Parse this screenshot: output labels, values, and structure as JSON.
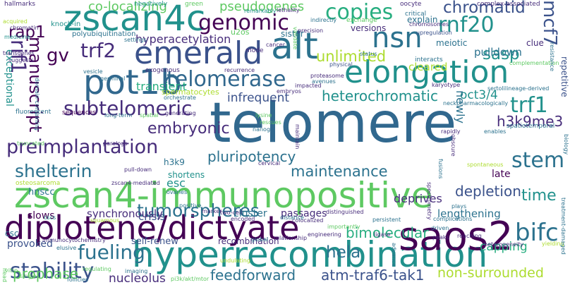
{
  "palette": [
    "#440154",
    "#472d7b",
    "#3b528b",
    "#2c728e",
    "#21918c",
    "#28ae80",
    "#5ec962",
    "#addc30",
    "#fde725"
  ],
  "words": [
    {
      "text": "telomere",
      "color": "#31688e",
      "vertical": false
    },
    {
      "text": "zscan4-immunopositive",
      "color": "#5ec962",
      "vertical": false
    },
    {
      "text": "hyperrecombination",
      "color": "#21918c",
      "vertical": false
    },
    {
      "text": "diplotene/dictyate",
      "color": "#440154",
      "vertical": false
    },
    {
      "text": "zscan4c",
      "color": "#21918c",
      "vertical": false
    },
    {
      "text": "emerald",
      "color": "#3b528b",
      "vertical": false
    },
    {
      "text": "elongation",
      "color": "#21918c",
      "vertical": false
    },
    {
      "text": "alt",
      "color": "#2c728e",
      "vertical": false
    },
    {
      "text": "pot1b",
      "color": "#31688e",
      "vertical": false
    },
    {
      "text": "saos2",
      "color": "#440154",
      "vertical": false
    },
    {
      "text": "nsn",
      "color": "#2c728e",
      "vertical": false
    },
    {
      "text": "telomerase",
      "color": "#31688e",
      "vertical": false
    },
    {
      "text": "genomic",
      "color": "#440154",
      "vertical": false
    },
    {
      "text": "copies",
      "color": "#28ae80",
      "vertical": false
    },
    {
      "text": "preimplantation",
      "color": "#472d7b",
      "vertical": false
    },
    {
      "text": "shelterin",
      "color": "#2c728e",
      "vertical": false
    },
    {
      "text": "subtelomeric",
      "color": "#472d7b",
      "vertical": false
    },
    {
      "text": "rnf20",
      "color": "#21918c",
      "vertical": false
    },
    {
      "text": "tumorspheres",
      "color": "#2c728e",
      "vertical": false
    },
    {
      "text": "stability",
      "color": "#3b528b",
      "vertical": false
    },
    {
      "text": "maintenance",
      "color": "#2c728e",
      "vertical": false
    },
    {
      "text": "bimolecular",
      "color": "#28ae80",
      "vertical": false
    },
    {
      "text": "fueling",
      "color": "#2c728e",
      "vertical": false
    },
    {
      "text": "bifc",
      "color": "#2c728e",
      "vertical": false
    },
    {
      "text": "trf1",
      "color": "#21918c",
      "vertical": false
    },
    {
      "text": "stem",
      "color": "#2c728e",
      "vertical": false
    },
    {
      "text": "chromatid",
      "color": "#3b528b",
      "vertical": false
    },
    {
      "text": "rap1",
      "color": "#440154",
      "vertical": false
    },
    {
      "text": "trf2",
      "color": "#472d7b",
      "vertical": false
    },
    {
      "text": "gv",
      "color": "#440154",
      "vertical": false
    },
    {
      "text": "embryonic",
      "color": "#472d7b",
      "vertical": false
    },
    {
      "text": "heterochromatic",
      "color": "#21918c",
      "vertical": false
    },
    {
      "text": "h3k9me3",
      "color": "#472d7b",
      "vertical": false
    },
    {
      "text": "pluripotency",
      "color": "#2c728e",
      "vertical": false
    },
    {
      "text": "hela",
      "color": "#2c728e",
      "vertical": false
    },
    {
      "text": "unlimited",
      "color": "#addc30",
      "vertical": false
    },
    {
      "text": "sasp",
      "color": "#21918c",
      "vertical": false
    },
    {
      "text": "feedforward",
      "color": "#2c728e",
      "vertical": false
    },
    {
      "text": "atm-traf6-tak1",
      "color": "#3b528b",
      "vertical": false
    },
    {
      "text": "non-surrounded",
      "color": "#addc30",
      "vertical": false
    },
    {
      "text": "prophase",
      "color": "#5ec962",
      "vertical": false
    },
    {
      "text": "nucleolus",
      "color": "#472d7b",
      "vertical": false
    },
    {
      "text": "lengthening",
      "color": "#2c728e",
      "vertical": false
    },
    {
      "text": "time",
      "color": "#21918c",
      "vertical": false
    },
    {
      "text": "depletion",
      "color": "#3b528b",
      "vertical": false
    },
    {
      "text": "hyperacetylation",
      "color": "#472d7b",
      "vertical": false
    },
    {
      "text": "pseudogenes",
      "color": "#5ec962",
      "vertical": false
    },
    {
      "text": "co-localizing",
      "color": "#5ec962",
      "vertical": false
    },
    {
      "text": "oct3/4",
      "color": "#21918c",
      "vertical": false
    },
    {
      "text": "pulldown",
      "color": "#2c728e",
      "vertical": false
    },
    {
      "text": "crisis",
      "color": "#3b528b",
      "vertical": false
    },
    {
      "text": "esc",
      "color": "#21918c",
      "vertical": false
    },
    {
      "text": "passages",
      "color": "#472d7b",
      "vertical": false
    },
    {
      "text": "deprives",
      "color": "#472d7b",
      "vertical": false
    },
    {
      "text": "capping",
      "color": "#28ae80",
      "vertical": false
    },
    {
      "text": "provoked",
      "color": "#3b528b",
      "vertical": false
    },
    {
      "text": "self-renew",
      "color": "#3b528b",
      "vertical": false
    },
    {
      "text": "recombination",
      "color": "#472d7b",
      "vertical": false
    },
    {
      "text": "synchronously",
      "color": "#472d7b",
      "vertical": false
    },
    {
      "text": "cluster",
      "color": "#2c728e",
      "vertical": false
    },
    {
      "text": "slows",
      "color": "#440154",
      "vertical": false
    },
    {
      "text": "shortens",
      "color": "#21918c",
      "vertical": false
    },
    {
      "text": "infrequent",
      "color": "#3b528b",
      "vertical": false
    },
    {
      "text": "transient",
      "color": "#28ae80",
      "vertical": false
    },
    {
      "text": "cleared",
      "color": "#addc30",
      "vertical": false
    },
    {
      "text": "spermatocytes",
      "color": "#addc30",
      "vertical": false
    },
    {
      "text": "versions",
      "color": "#472d7b",
      "vertical": false
    },
    {
      "text": "sister",
      "color": "#2c728e",
      "vertical": false
    },
    {
      "text": "meiotic",
      "color": "#2c728e",
      "vertical": false
    },
    {
      "text": "explain",
      "color": "#2c728e",
      "vertical": false
    },
    {
      "text": "clue",
      "color": "#472d7b",
      "vertical": false
    },
    {
      "text": "late",
      "color": "#440154",
      "vertical": false
    },
    {
      "text": "hnscc",
      "color": "#2c728e",
      "vertical": false
    },
    {
      "text": "h3k9",
      "color": "#2c728e",
      "vertical": false
    },
    {
      "text": "csc",
      "color": "#2c728e",
      "vertical": false
    },
    {
      "text": "u2os",
      "color": "#5ec962",
      "vertical": false
    },
    {
      "text": "newly",
      "color": "#2c728e",
      "vertical": true
    },
    {
      "text": "mcf7",
      "color": "#3b528b",
      "vertical": true
    },
    {
      "text": "rif1",
      "color": "#472d7b",
      "vertical": true
    },
    {
      "text": "manuscript",
      "color": "#440154",
      "vertical": true
    },
    {
      "text": "exceptional",
      "color": "#21918c",
      "vertical": true
    },
    {
      "text": "repetitive",
      "color": "#3b528b",
      "vertical": true
    },
    {
      "text": "hallmarks",
      "color": "#472d7b",
      "vertical": false
    },
    {
      "text": "negatively",
      "color": "#21918c",
      "vertical": false
    },
    {
      "text": "green",
      "color": "#5ec962",
      "vertical": false
    },
    {
      "text": "oocyte",
      "color": "#472d7b",
      "vertical": false
    },
    {
      "text": "complex-associated",
      "color": "#472d7b",
      "vertical": false
    },
    {
      "text": "critical",
      "color": "#2c728e",
      "vertical": false
    },
    {
      "text": "chromosomes",
      "color": "#472d7b",
      "vertical": false
    },
    {
      "text": "upregulation",
      "color": "#3b528b",
      "vertical": false
    },
    {
      "text": "precision",
      "color": "#472d7b",
      "vertical": false
    },
    {
      "text": "polyubiquitination",
      "color": "#2c728e",
      "vertical": false
    },
    {
      "text": "knock-in",
      "color": "#21918c",
      "vertical": false
    },
    {
      "text": "acquired",
      "color": "#addc30",
      "vertical": false
    },
    {
      "text": "chromatin",
      "color": "#472d7b",
      "vertical": false
    },
    {
      "text": "medicine",
      "color": "#21918c",
      "vertical": false
    },
    {
      "text": "transgenes",
      "color": "#472d7b",
      "vertical": false
    },
    {
      "text": "suggests",
      "color": "#472d7b",
      "vertical": false
    },
    {
      "text": "lethality",
      "color": "#472d7b",
      "vertical": false
    },
    {
      "text": "indirectly",
      "color": "#2c728e",
      "vertical": false
    },
    {
      "text": "exchange",
      "color": "#5ec962",
      "vertical": false
    },
    {
      "text": "remarkably",
      "color": "#21918c",
      "vertical": false
    },
    {
      "text": "cancer",
      "color": "#472d7b",
      "vertical": false
    },
    {
      "text": "mode",
      "color": "#472d7b",
      "vertical": false
    },
    {
      "text": "status",
      "color": "#2c728e",
      "vertical": false
    },
    {
      "text": "interacts",
      "color": "#2c728e",
      "vertical": false
    },
    {
      "text": "complementation",
      "color": "#5ec962",
      "vertical": false
    },
    {
      "text": "sertolilineage-derived",
      "color": "#2c728e",
      "vertical": false
    },
    {
      "text": "physical",
      "color": "#3b528b",
      "vertical": false
    },
    {
      "text": "proteasome",
      "color": "#472d7b",
      "vertical": false
    },
    {
      "text": "avenues",
      "color": "#2c728e",
      "vertical": false
    },
    {
      "text": "impacted",
      "color": "#472d7b",
      "vertical": false
    },
    {
      "text": "embryos",
      "color": "#472d7b",
      "vertical": false
    },
    {
      "text": "recurrence",
      "color": "#472d7b",
      "vertical": false
    },
    {
      "text": "exogenous",
      "color": "#472d7b",
      "vertical": false
    },
    {
      "text": "vesicle",
      "color": "#2c728e",
      "vertical": false
    },
    {
      "text": "germinal",
      "color": "#2c728e",
      "vertical": false
    },
    {
      "text": "orchestrate",
      "color": "#2c728e",
      "vertical": false
    },
    {
      "text": "fluorescent",
      "color": "#2c728e",
      "vertical": false
    },
    {
      "text": "sequences",
      "color": "#440154",
      "vertical": false
    },
    {
      "text": "long-term",
      "color": "#2c728e",
      "vertical": false
    },
    {
      "text": "spatial",
      "color": "#5ec962",
      "vertical": false
    },
    {
      "text": "generating",
      "color": "#472d7b",
      "vertical": false
    },
    {
      "text": "neck",
      "color": "#2c728e",
      "vertical": false
    },
    {
      "text": "pharmacologically",
      "color": "#2c728e",
      "vertical": false
    },
    {
      "text": "spatiotemporal",
      "color": "#2c728e",
      "vertical": false
    },
    {
      "text": "rapidly",
      "color": "#472d7b",
      "vertical": false
    },
    {
      "text": "enables",
      "color": "#2c728e",
      "vertical": false
    },
    {
      "text": "nanog",
      "color": "#2c728e",
      "vertical": false
    },
    {
      "text": "rescues",
      "color": "#5ec962",
      "vertical": false
    },
    {
      "text": "paralogs",
      "color": "#472d7b",
      "vertical": false
    },
    {
      "text": "truncated",
      "color": "#5ec962",
      "vertical": false
    },
    {
      "text": "pull-down",
      "color": "#472d7b",
      "vertical": false
    },
    {
      "text": "osteosarcoma",
      "color": "#addc30",
      "vertical": false
    },
    {
      "text": "zscan4-mediated",
      "color": "#472d7b",
      "vertical": false
    },
    {
      "text": "ovaries",
      "color": "#2c728e",
      "vertical": false
    },
    {
      "text": "cervical",
      "color": "#472d7b",
      "vertical": false
    },
    {
      "text": "spontaneous",
      "color": "#addc30",
      "vertical": false
    },
    {
      "text": "positive",
      "color": "#2c728e",
      "vertical": false
    },
    {
      "text": "two-cell",
      "color": "#472d7b",
      "vertical": false
    },
    {
      "text": "marker",
      "color": "#472d7b",
      "vertical": false
    },
    {
      "text": "cscs",
      "color": "#21918c",
      "vertical": false
    },
    {
      "text": "squamous",
      "color": "#addc30",
      "vertical": false
    },
    {
      "text": "encoded",
      "color": "#472d7b",
      "vertical": false
    },
    {
      "text": "distinguished",
      "color": "#472d7b",
      "vertical": false
    },
    {
      "text": "colocalized",
      "color": "#472d7b",
      "vertical": false
    },
    {
      "text": "persistent",
      "color": "#2c728e",
      "vertical": false
    },
    {
      "text": "complications",
      "color": "#2c728e",
      "vertical": false
    },
    {
      "text": "distance",
      "color": "#2c728e",
      "vertical": false
    },
    {
      "text": "importantly",
      "color": "#5ec962",
      "vertical": false
    },
    {
      "text": "immunocytochemistry",
      "color": "#472d7b",
      "vertical": false
    },
    {
      "text": "global",
      "color": "#2c728e",
      "vertical": false
    },
    {
      "text": "relationship",
      "color": "#472d7b",
      "vertical": false
    },
    {
      "text": "engineering",
      "color": "#472d7b",
      "vertical": false
    },
    {
      "text": "ligase",
      "color": "#472d7b",
      "vertical": false
    },
    {
      "text": "peaks",
      "color": "#472d7b",
      "vertical": false
    },
    {
      "text": "reaching",
      "color": "#472d7b",
      "vertical": false
    },
    {
      "text": "driven",
      "color": "#2c728e",
      "vertical": false
    },
    {
      "text": "elusive",
      "color": "#2c728e",
      "vertical": false
    },
    {
      "text": "imaging",
      "color": "#2c728e",
      "vertical": false
    },
    {
      "text": "regulating",
      "color": "#5ec962",
      "vertical": false
    },
    {
      "text": "follicles",
      "color": "#2c728e",
      "vertical": false
    },
    {
      "text": "pi3k/akt/mtor",
      "color": "#5ec962",
      "vertical": false
    },
    {
      "text": "heterogeneity",
      "color": "#472d7b",
      "vertical": false
    },
    {
      "text": "yielding",
      "color": "#addc30",
      "vertical": false
    },
    {
      "text": "plays",
      "color": "#2c728e",
      "vertical": false
    },
    {
      "text": "vitro",
      "color": "#5ec962",
      "vertical": false
    },
    {
      "text": "single",
      "color": "#5ec962",
      "vertical": false
    },
    {
      "text": "undulating",
      "color": "#addc30",
      "vertical": false
    },
    {
      "text": "treatment-damaged",
      "color": "#2c728e",
      "vertical": true
    },
    {
      "text": "resistance",
      "color": "#2c728e",
      "vertical": true
    },
    {
      "text": "biology",
      "color": "#2c728e",
      "vertical": true
    },
    {
      "text": "spectrometry",
      "color": "#472d7b",
      "vertical": true
    },
    {
      "text": "domain-containing",
      "color": "#2c728e",
      "vertical": true
    },
    {
      "text": "obscure",
      "color": "#472d7b",
      "vertical": true
    },
    {
      "text": "maintain",
      "color": "#472d7b",
      "vertical": true
    },
    {
      "text": "validate",
      "color": "#5ec962",
      "vertical": true
    },
    {
      "text": "advance",
      "color": "#2c728e",
      "vertical": true
    },
    {
      "text": "fusions",
      "color": "#2c728e",
      "vertical": true
    },
    {
      "text": "karyotype",
      "color": "#472d7b",
      "vertical": false
    },
    {
      "text": "settings",
      "color": "#2c728e",
      "vertical": false
    },
    {
      "text": "lysine",
      "color": "#5ec962",
      "vertical": false
    },
    {
      "text": "head",
      "color": "#5ec962",
      "vertical": true
    }
  ]
}
